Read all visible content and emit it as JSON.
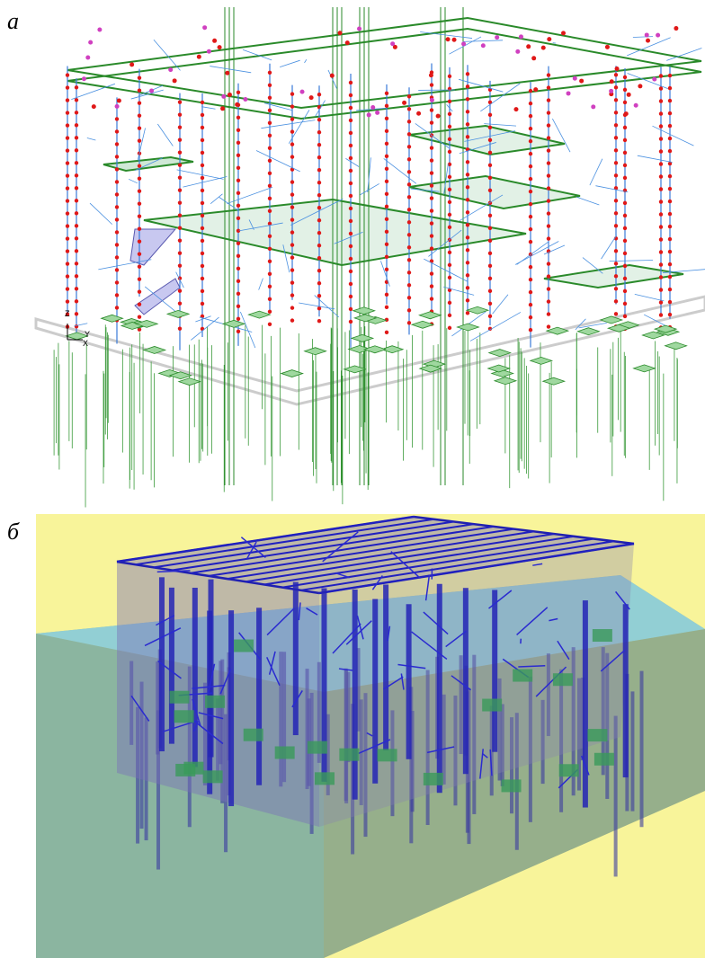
{
  "panels": {
    "a": {
      "label": "а",
      "axes": {
        "z": "Z",
        "y": "Y",
        "x": "X"
      }
    },
    "b": {
      "label": "б"
    }
  }
}
